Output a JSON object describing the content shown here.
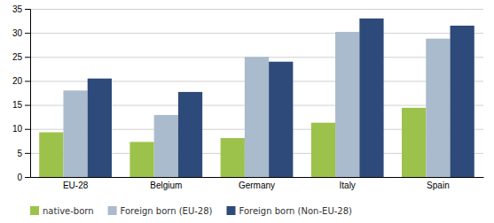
{
  "chart_data": {
    "type": "bar",
    "categories": [
      "EU-28",
      "Belgium",
      "Germany",
      "Italy",
      "Spain"
    ],
    "series": [
      {
        "name": "native-born",
        "color": "#9DC24B",
        "values": [
          9.3,
          7.3,
          8.1,
          11.3,
          14.4
        ]
      },
      {
        "name": "Foreign born (EU-28)",
        "color": "#A9BBCC",
        "values": [
          18.0,
          12.9,
          25.0,
          30.2,
          28.8
        ]
      },
      {
        "name": "Foreign born (Non-EU-28)",
        "color": "#2E4A7A",
        "values": [
          20.5,
          17.7,
          24.0,
          33.0,
          31.5
        ]
      }
    ],
    "ylim": [
      0,
      35
    ],
    "yticks": [
      0,
      5,
      10,
      15,
      20,
      25,
      30,
      35
    ],
    "grid": true,
    "legend": "bottom"
  }
}
